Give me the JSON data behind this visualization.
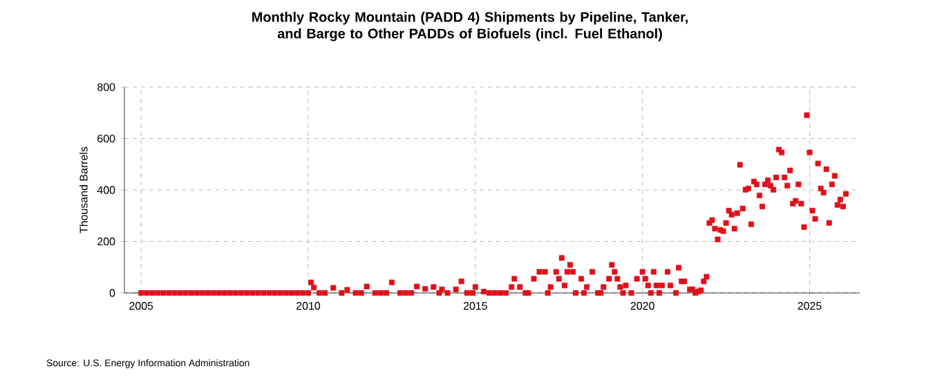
{
  "chart_data": {
    "type": "scatter",
    "title": "Monthly Rocky Mountain (PADD 4) Shipments by Pipeline, Tanker, and Barge to Other PADDs of Biofuels (incl. Fuel Ethanol)",
    "ylabel": "Thousand Barrels",
    "annotations": [
      "Source: U.S. Energy Information Administration"
    ],
    "xlim": [
      "2004-07",
      "2026-07"
    ],
    "xticks": [
      "2005",
      "2010",
      "2015",
      "2020",
      "2025"
    ],
    "ylim": [
      0,
      800
    ],
    "yticks": [
      0,
      200,
      400,
      600,
      800
    ],
    "grid": true,
    "marker": "square",
    "series": [
      {
        "color": "#e0101a",
        "x": [
          "2005-01",
          "2005-03",
          "2005-05",
          "2005-07",
          "2005-09",
          "2005-11",
          "2006-01",
          "2006-03",
          "2006-05",
          "2006-07",
          "2006-09",
          "2006-11",
          "2007-01",
          "2007-03",
          "2007-05",
          "2007-07",
          "2007-09",
          "2007-11",
          "2008-01",
          "2008-03",
          "2008-05",
          "2008-07",
          "2008-09",
          "2008-11",
          "2009-01",
          "2009-03",
          "2009-05",
          "2009-07",
          "2009-09",
          "2009-11",
          "2010-01",
          "2010-02",
          "2010-03",
          "2010-05",
          "2010-07",
          "2010-10",
          "2011-01",
          "2011-03",
          "2011-06",
          "2011-08",
          "2011-10",
          "2012-01",
          "2012-03",
          "2012-05",
          "2012-07",
          "2012-10",
          "2012-12",
          "2013-02",
          "2013-04",
          "2013-07",
          "2013-10",
          "2013-12",
          "2014-01",
          "2014-03",
          "2014-06",
          "2014-08",
          "2014-10",
          "2014-12",
          "2015-01",
          "2015-04",
          "2015-06",
          "2015-08",
          "2015-10",
          "2015-12",
          "2016-02",
          "2016-03",
          "2016-05",
          "2016-07",
          "2016-08",
          "2016-10",
          "2016-12",
          "2017-02",
          "2017-03",
          "2017-04",
          "2017-06",
          "2017-07",
          "2017-08",
          "2017-09",
          "2017-10",
          "2017-11",
          "2017-12",
          "2018-01",
          "2018-03",
          "2018-04",
          "2018-05",
          "2018-07",
          "2018-09",
          "2018-10",
          "2018-11",
          "2019-01",
          "2019-02",
          "2019-03",
          "2019-04",
          "2019-05",
          "2019-06",
          "2019-07",
          "2019-09",
          "2019-11",
          "2020-01",
          "2020-02",
          "2020-03",
          "2020-04",
          "2020-05",
          "2020-06",
          "2020-07",
          "2020-08",
          "2020-10",
          "2020-11",
          "2021-01",
          "2021-02",
          "2021-03",
          "2021-04",
          "2021-06",
          "2021-07",
          "2021-08",
          "2021-09",
          "2021-10",
          "2021-11",
          "2021-12",
          "2022-01",
          "2022-02",
          "2022-03",
          "2022-04",
          "2022-05",
          "2022-06",
          "2022-07",
          "2022-08",
          "2022-09",
          "2022-10",
          "2022-11",
          "2022-12",
          "2023-01",
          "2023-02",
          "2023-03",
          "2023-04",
          "2023-05",
          "2023-06",
          "2023-07",
          "2023-08",
          "2023-09",
          "2023-10",
          "2023-11",
          "2023-12",
          "2024-01",
          "2024-02",
          "2024-03",
          "2024-04",
          "2024-05",
          "2024-06",
          "2024-07",
          "2024-08",
          "2024-09",
          "2024-10",
          "2024-11",
          "2024-12",
          "2025-01",
          "2025-02",
          "2025-03",
          "2025-04",
          "2025-05",
          "2025-06",
          "2025-07",
          "2025-08",
          "2025-09",
          "2025-10",
          "2025-11",
          "2025-12",
          "2026-01",
          "2026-02"
        ],
        "values": [
          0,
          0,
          0,
          0,
          0,
          0,
          0,
          0,
          0,
          0,
          0,
          0,
          0,
          0,
          0,
          0,
          0,
          0,
          0,
          0,
          0,
          0,
          0,
          0,
          0,
          0,
          0,
          0,
          0,
          0,
          0,
          41,
          21,
          0,
          0,
          20,
          0,
          12,
          0,
          0,
          25,
          0,
          0,
          0,
          41,
          0,
          0,
          0,
          25,
          16,
          23,
          0,
          14,
          0,
          14,
          45,
          0,
          0,
          23,
          5,
          0,
          0,
          0,
          0,
          23,
          55,
          23,
          0,
          0,
          55,
          82,
          82,
          0,
          23,
          82,
          55,
          136,
          29,
          82,
          109,
          82,
          0,
          55,
          0,
          23,
          82,
          0,
          0,
          23,
          55,
          109,
          82,
          55,
          23,
          0,
          29,
          0,
          55,
          82,
          55,
          29,
          0,
          82,
          29,
          0,
          29,
          82,
          29,
          0,
          98,
          45,
          45,
          14,
          14,
          0,
          5,
          10,
          45,
          63,
          272,
          283,
          250,
          208,
          245,
          240,
          272,
          320,
          304,
          250,
          310,
          498,
          328,
          401,
          406,
          267,
          433,
          422,
          379,
          336,
          422,
          438,
          417,
          401,
          449,
          557,
          546,
          449,
          417,
          476,
          347,
          358,
          422,
          347,
          256,
          691,
          546,
          320,
          288,
          503,
          406,
          390,
          481,
          272,
          422,
          455,
          342,
          363,
          336,
          385
        ]
      }
    ]
  }
}
